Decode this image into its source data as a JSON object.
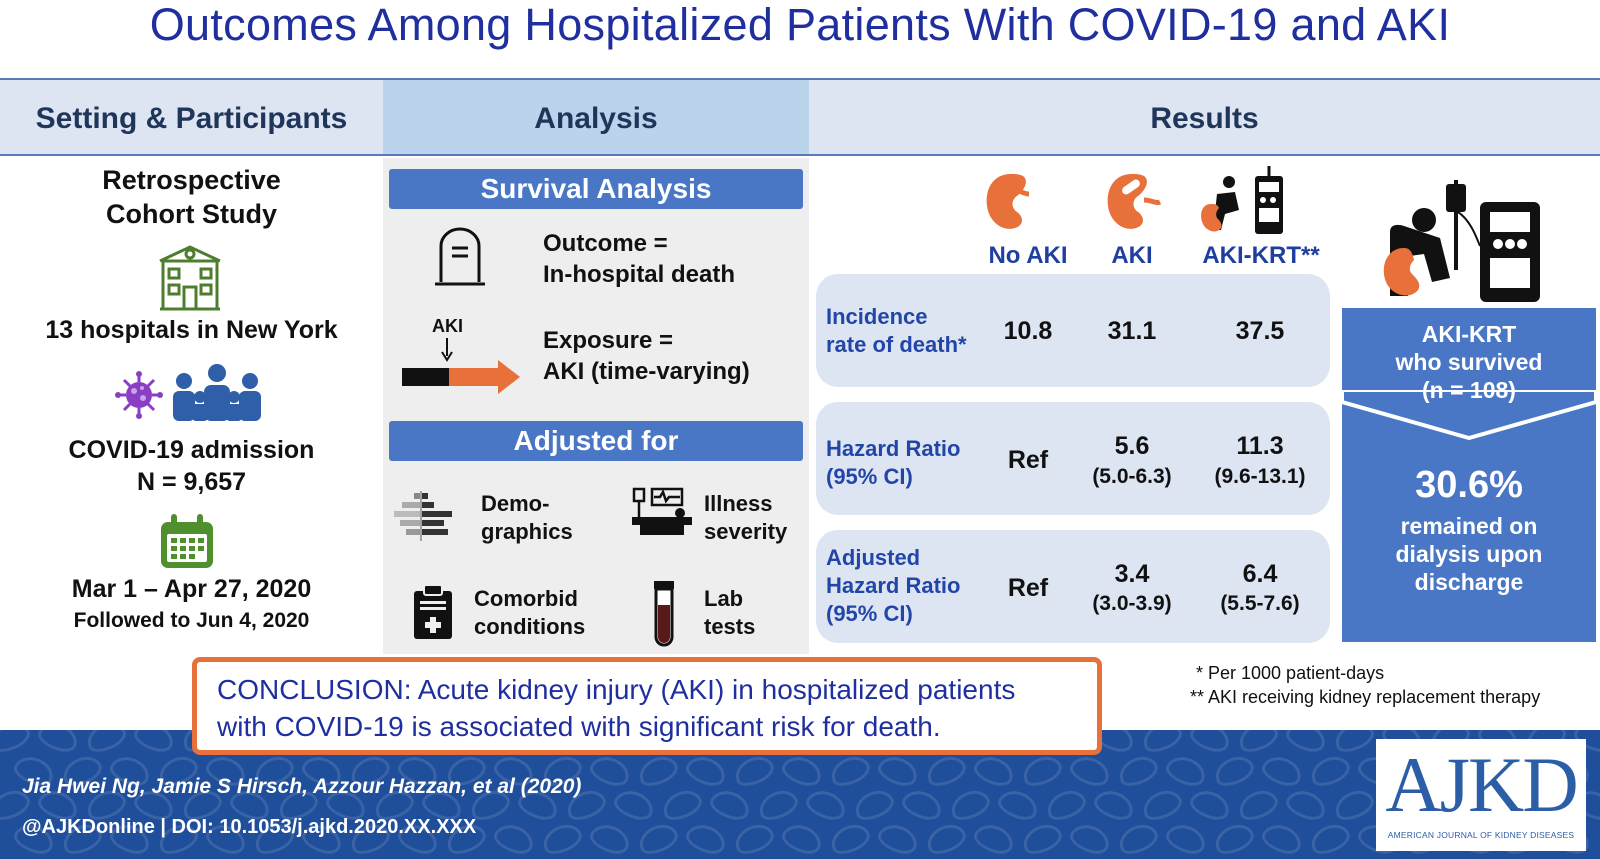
{
  "title": "Outcomes Among Hospitalized Patients With COVID-19 and AKI",
  "headers": {
    "setting": "Setting & Participants",
    "analysis": "Analysis",
    "results": "Results"
  },
  "setting": {
    "design_line1": "Retrospective",
    "design_line2": "Cohort Study",
    "hospitals": "13 hospitals in New York",
    "admission_line1": "COVID-19 admission",
    "admission_line2": "N = 9,657",
    "dates": "Mar 1 – Apr 27, 2020",
    "followup": "Followed to Jun 4, 2020",
    "icons": [
      "hospital-icon",
      "virus-icon",
      "people-icon",
      "calendar-icon"
    ]
  },
  "analysis": {
    "survival_header": "Survival Analysis",
    "outcome_line1": "Outcome =",
    "outcome_line2": "In-hospital death",
    "aki_marker": "AKI",
    "exposure_line1": "Exposure =",
    "exposure_line2": "AKI (time-varying)",
    "adjusted_header": "Adjusted for",
    "covariates": {
      "demo_line1": "Demo-",
      "demo_line2": "graphics",
      "illness_line1": "Illness",
      "illness_line2": "severity",
      "comorbid_line1": "Comorbid",
      "comorbid_line2": "conditions",
      "lab_line1": "Lab",
      "lab_line2": "tests"
    },
    "colors": {
      "bar": "#4a76c6",
      "arrow": "#e8703a"
    }
  },
  "results": {
    "columns": [
      "No AKI",
      "AKI",
      "AKI-KRT**"
    ],
    "rows": [
      {
        "label_line1": "Incidence",
        "label_line2": "rate of death*",
        "label_line3": "",
        "values": [
          "10.8",
          "31.1",
          "37.5"
        ],
        "ci": [
          "",
          "",
          ""
        ]
      },
      {
        "label_line1": "Hazard Ratio",
        "label_line2": "(95% CI)",
        "label_line3": "",
        "values": [
          "Ref",
          "5.6",
          "11.3"
        ],
        "ci": [
          "",
          "(5.0-6.3)",
          "(9.6-13.1)"
        ]
      },
      {
        "label_line1": "Adjusted",
        "label_line2": "Hazard Ratio",
        "label_line3": "(95% CI)",
        "values": [
          "Ref",
          "3.4",
          "6.4"
        ],
        "ci": [
          "",
          "(3.0-3.9)",
          "(5.5-7.6)"
        ]
      }
    ],
    "krt_panel": {
      "line1": "AKI-KRT",
      "line2": "who survived",
      "line3": "(n = 108)",
      "percent": "30.6%",
      "desc1": "remained on",
      "desc2": "dialysis upon",
      "desc3": "discharge"
    },
    "footnote1": "* Per 1000 patient-days",
    "footnote2": "** AKI receiving kidney replacement therapy"
  },
  "conclusion": {
    "line1": "CONCLUSION: Acute kidney injury (AKI) in hospitalized patients",
    "line2": "with COVID-19 is associated with significant risk for death."
  },
  "footer": {
    "authors": "Jia Hwei Ng, Jamie S Hirsch, Azzour Hazzan, et al (2020)",
    "doi": "@AJKDonline | DOI: 10.1053/j.ajkd.2020.XX.XXX",
    "logo": "AJKD",
    "logo_sub": "AMERICAN JOURNAL OF KIDNEY DISEASES"
  }
}
